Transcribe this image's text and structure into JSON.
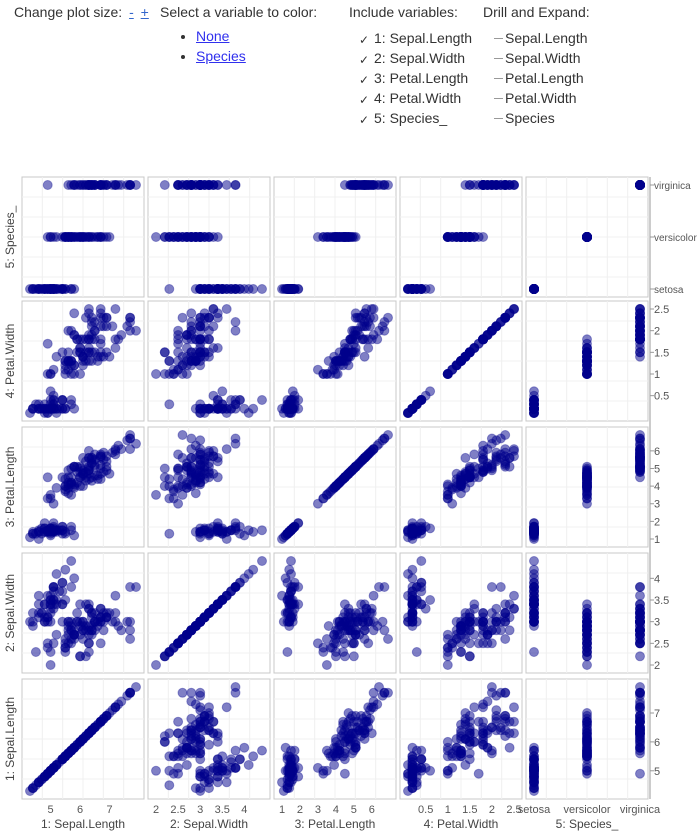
{
  "controls": {
    "plot_size": {
      "label": "Change plot size:",
      "minus": "-",
      "plus": "+"
    },
    "color": {
      "label": "Select a variable to color:",
      "options": [
        "None",
        "Species"
      ]
    },
    "include": {
      "label": "Include variables:",
      "items": [
        "1: Sepal.Length",
        "2: Sepal.Width",
        "3: Petal.Length",
        "4: Petal.Width",
        "5: Species_"
      ],
      "checkmark": "✓"
    },
    "drill": {
      "label": "Drill and Expand:",
      "items": [
        "Sepal.Length",
        "Sepal.Width",
        "Petal.Length",
        "Petal.Width",
        "Species"
      ]
    }
  },
  "chart_data": {
    "type": "scatter",
    "title": "",
    "point_color": "#00008b",
    "variables": [
      {
        "name": "1: Sepal.Length",
        "range": [
          4.3,
          7.9
        ],
        "ticks": [
          5,
          6,
          7
        ]
      },
      {
        "name": "2: Sepal.Width",
        "range": [
          2.0,
          4.4
        ],
        "ticks": [
          2,
          2.5,
          3,
          3.5,
          4
        ]
      },
      {
        "name": "3: Petal.Length",
        "range": [
          1.0,
          6.9
        ],
        "ticks": [
          1,
          2,
          3,
          4,
          5,
          6
        ]
      },
      {
        "name": "4: Petal.Width",
        "range": [
          0.1,
          2.5
        ],
        "ticks": [
          0.5,
          1,
          1.5,
          2,
          2.5
        ]
      },
      {
        "name": "5: Species_",
        "categories": [
          "setosa",
          "versicolor",
          "virginica"
        ]
      }
    ],
    "right_tick_labels": [
      [
        "virginica",
        "versicolor",
        "setosa"
      ],
      [
        "2.5",
        "2",
        "1.5",
        "1",
        "0.5"
      ],
      [
        "6",
        "5",
        "4",
        "3",
        "2",
        "1"
      ],
      [
        "4",
        "3.5",
        "3",
        "2.5",
        "2"
      ],
      [
        "7",
        "6",
        "5"
      ]
    ],
    "points": [
      [
        5.1,
        3.5,
        1.4,
        0.2,
        "setosa"
      ],
      [
        4.9,
        3.0,
        1.4,
        0.2,
        "setosa"
      ],
      [
        4.7,
        3.2,
        1.3,
        0.2,
        "setosa"
      ],
      [
        4.6,
        3.1,
        1.5,
        0.2,
        "setosa"
      ],
      [
        5.0,
        3.6,
        1.4,
        0.2,
        "setosa"
      ],
      [
        5.4,
        3.9,
        1.7,
        0.4,
        "setosa"
      ],
      [
        4.6,
        3.4,
        1.4,
        0.3,
        "setosa"
      ],
      [
        5.0,
        3.4,
        1.5,
        0.2,
        "setosa"
      ],
      [
        4.4,
        2.9,
        1.4,
        0.2,
        "setosa"
      ],
      [
        4.9,
        3.1,
        1.5,
        0.1,
        "setosa"
      ],
      [
        5.4,
        3.7,
        1.5,
        0.2,
        "setosa"
      ],
      [
        4.8,
        3.4,
        1.6,
        0.2,
        "setosa"
      ],
      [
        4.8,
        3.0,
        1.4,
        0.1,
        "setosa"
      ],
      [
        4.3,
        3.0,
        1.1,
        0.1,
        "setosa"
      ],
      [
        5.8,
        4.0,
        1.2,
        0.2,
        "setosa"
      ],
      [
        5.7,
        4.4,
        1.5,
        0.4,
        "setosa"
      ],
      [
        5.4,
        3.9,
        1.3,
        0.4,
        "setosa"
      ],
      [
        5.1,
        3.5,
        1.4,
        0.3,
        "setosa"
      ],
      [
        5.7,
        3.8,
        1.7,
        0.3,
        "setosa"
      ],
      [
        5.1,
        3.8,
        1.5,
        0.3,
        "setosa"
      ],
      [
        5.4,
        3.4,
        1.7,
        0.2,
        "setosa"
      ],
      [
        5.1,
        3.7,
        1.5,
        0.4,
        "setosa"
      ],
      [
        4.6,
        3.6,
        1.0,
        0.2,
        "setosa"
      ],
      [
        5.1,
        3.3,
        1.7,
        0.5,
        "setosa"
      ],
      [
        4.8,
        3.4,
        1.9,
        0.2,
        "setosa"
      ],
      [
        5.0,
        3.0,
        1.6,
        0.2,
        "setosa"
      ],
      [
        5.0,
        3.4,
        1.6,
        0.4,
        "setosa"
      ],
      [
        5.2,
        3.5,
        1.5,
        0.2,
        "setosa"
      ],
      [
        5.2,
        3.4,
        1.4,
        0.2,
        "setosa"
      ],
      [
        4.7,
        3.2,
        1.6,
        0.2,
        "setosa"
      ],
      [
        4.8,
        3.1,
        1.6,
        0.2,
        "setosa"
      ],
      [
        5.4,
        3.4,
        1.5,
        0.4,
        "setosa"
      ],
      [
        5.2,
        4.1,
        1.5,
        0.1,
        "setosa"
      ],
      [
        5.5,
        4.2,
        1.4,
        0.2,
        "setosa"
      ],
      [
        4.9,
        3.1,
        1.5,
        0.2,
        "setosa"
      ],
      [
        5.0,
        3.2,
        1.2,
        0.2,
        "setosa"
      ],
      [
        5.5,
        3.5,
        1.3,
        0.2,
        "setosa"
      ],
      [
        4.9,
        3.6,
        1.4,
        0.1,
        "setosa"
      ],
      [
        4.4,
        3.0,
        1.3,
        0.2,
        "setosa"
      ],
      [
        5.1,
        3.4,
        1.5,
        0.2,
        "setosa"
      ],
      [
        5.0,
        3.5,
        1.3,
        0.3,
        "setosa"
      ],
      [
        4.5,
        2.3,
        1.3,
        0.3,
        "setosa"
      ],
      [
        4.4,
        3.2,
        1.3,
        0.2,
        "setosa"
      ],
      [
        5.0,
        3.5,
        1.6,
        0.6,
        "setosa"
      ],
      [
        5.1,
        3.8,
        1.9,
        0.4,
        "setosa"
      ],
      [
        4.8,
        3.0,
        1.4,
        0.3,
        "setosa"
      ],
      [
        5.1,
        3.8,
        1.6,
        0.2,
        "setosa"
      ],
      [
        4.6,
        3.2,
        1.4,
        0.2,
        "setosa"
      ],
      [
        5.3,
        3.7,
        1.5,
        0.2,
        "setosa"
      ],
      [
        5.0,
        3.3,
        1.4,
        0.2,
        "setosa"
      ],
      [
        7.0,
        3.2,
        4.7,
        1.4,
        "versicolor"
      ],
      [
        6.4,
        3.2,
        4.5,
        1.5,
        "versicolor"
      ],
      [
        6.9,
        3.1,
        4.9,
        1.5,
        "versicolor"
      ],
      [
        5.5,
        2.3,
        4.0,
        1.3,
        "versicolor"
      ],
      [
        6.5,
        2.8,
        4.6,
        1.5,
        "versicolor"
      ],
      [
        5.7,
        2.8,
        4.5,
        1.3,
        "versicolor"
      ],
      [
        6.3,
        3.3,
        4.7,
        1.6,
        "versicolor"
      ],
      [
        4.9,
        2.4,
        3.3,
        1.0,
        "versicolor"
      ],
      [
        6.6,
        2.9,
        4.6,
        1.3,
        "versicolor"
      ],
      [
        5.2,
        2.7,
        3.9,
        1.4,
        "versicolor"
      ],
      [
        5.0,
        2.0,
        3.5,
        1.0,
        "versicolor"
      ],
      [
        5.9,
        3.0,
        4.2,
        1.5,
        "versicolor"
      ],
      [
        6.0,
        2.2,
        4.0,
        1.0,
        "versicolor"
      ],
      [
        6.1,
        2.9,
        4.7,
        1.4,
        "versicolor"
      ],
      [
        5.6,
        2.9,
        3.6,
        1.3,
        "versicolor"
      ],
      [
        6.7,
        3.1,
        4.4,
        1.4,
        "versicolor"
      ],
      [
        5.6,
        3.0,
        4.5,
        1.5,
        "versicolor"
      ],
      [
        5.8,
        2.7,
        4.1,
        1.0,
        "versicolor"
      ],
      [
        6.2,
        2.2,
        4.5,
        1.5,
        "versicolor"
      ],
      [
        5.6,
        2.5,
        3.9,
        1.1,
        "versicolor"
      ],
      [
        5.9,
        3.2,
        4.8,
        1.8,
        "versicolor"
      ],
      [
        6.1,
        2.8,
        4.0,
        1.3,
        "versicolor"
      ],
      [
        6.3,
        2.5,
        4.9,
        1.5,
        "versicolor"
      ],
      [
        6.1,
        2.8,
        4.7,
        1.2,
        "versicolor"
      ],
      [
        6.4,
        2.9,
        4.3,
        1.3,
        "versicolor"
      ],
      [
        6.6,
        3.0,
        4.4,
        1.4,
        "versicolor"
      ],
      [
        6.8,
        2.8,
        4.8,
        1.4,
        "versicolor"
      ],
      [
        6.7,
        3.0,
        5.0,
        1.7,
        "versicolor"
      ],
      [
        6.0,
        2.9,
        4.5,
        1.5,
        "versicolor"
      ],
      [
        5.7,
        2.6,
        3.5,
        1.0,
        "versicolor"
      ],
      [
        5.5,
        2.4,
        3.8,
        1.1,
        "versicolor"
      ],
      [
        5.5,
        2.4,
        3.7,
        1.0,
        "versicolor"
      ],
      [
        5.8,
        2.7,
        3.9,
        1.2,
        "versicolor"
      ],
      [
        6.0,
        2.7,
        5.1,
        1.6,
        "versicolor"
      ],
      [
        5.4,
        3.0,
        4.5,
        1.5,
        "versicolor"
      ],
      [
        6.0,
        3.4,
        4.5,
        1.6,
        "versicolor"
      ],
      [
        6.7,
        3.1,
        4.7,
        1.5,
        "versicolor"
      ],
      [
        6.3,
        2.3,
        4.4,
        1.3,
        "versicolor"
      ],
      [
        5.6,
        3.0,
        4.1,
        1.3,
        "versicolor"
      ],
      [
        5.5,
        2.5,
        4.0,
        1.3,
        "versicolor"
      ],
      [
        5.5,
        2.6,
        4.4,
        1.2,
        "versicolor"
      ],
      [
        6.1,
        3.0,
        4.6,
        1.4,
        "versicolor"
      ],
      [
        5.8,
        2.6,
        4.0,
        1.2,
        "versicolor"
      ],
      [
        5.0,
        2.3,
        3.3,
        1.0,
        "versicolor"
      ],
      [
        5.6,
        2.7,
        4.2,
        1.3,
        "versicolor"
      ],
      [
        5.7,
        3.0,
        4.2,
        1.2,
        "versicolor"
      ],
      [
        5.7,
        2.9,
        4.2,
        1.3,
        "versicolor"
      ],
      [
        6.2,
        2.9,
        4.3,
        1.3,
        "versicolor"
      ],
      [
        5.1,
        2.5,
        3.0,
        1.1,
        "versicolor"
      ],
      [
        5.7,
        2.8,
        4.1,
        1.3,
        "versicolor"
      ],
      [
        6.3,
        3.3,
        6.0,
        2.5,
        "virginica"
      ],
      [
        5.8,
        2.7,
        5.1,
        1.9,
        "virginica"
      ],
      [
        7.1,
        3.0,
        5.9,
        2.1,
        "virginica"
      ],
      [
        6.3,
        2.9,
        5.6,
        1.8,
        "virginica"
      ],
      [
        6.5,
        3.0,
        5.8,
        2.2,
        "virginica"
      ],
      [
        7.6,
        3.0,
        6.6,
        2.1,
        "virginica"
      ],
      [
        4.9,
        2.5,
        4.5,
        1.7,
        "virginica"
      ],
      [
        7.3,
        2.9,
        6.3,
        1.8,
        "virginica"
      ],
      [
        6.7,
        2.5,
        5.8,
        1.8,
        "virginica"
      ],
      [
        7.2,
        3.6,
        6.1,
        2.5,
        "virginica"
      ],
      [
        6.5,
        3.2,
        5.1,
        2.0,
        "virginica"
      ],
      [
        6.4,
        2.7,
        5.3,
        1.9,
        "virginica"
      ],
      [
        6.8,
        3.0,
        5.5,
        2.1,
        "virginica"
      ],
      [
        5.7,
        2.5,
        5.0,
        2.0,
        "virginica"
      ],
      [
        5.8,
        2.8,
        5.1,
        2.4,
        "virginica"
      ],
      [
        6.4,
        3.2,
        5.3,
        2.3,
        "virginica"
      ],
      [
        6.5,
        3.0,
        5.5,
        1.8,
        "virginica"
      ],
      [
        7.7,
        3.8,
        6.7,
        2.2,
        "virginica"
      ],
      [
        7.7,
        2.6,
        6.9,
        2.3,
        "virginica"
      ],
      [
        6.0,
        2.2,
        5.0,
        1.5,
        "virginica"
      ],
      [
        6.9,
        3.2,
        5.7,
        2.3,
        "virginica"
      ],
      [
        5.6,
        2.8,
        4.9,
        2.0,
        "virginica"
      ],
      [
        7.7,
        2.8,
        6.7,
        2.0,
        "virginica"
      ],
      [
        6.3,
        2.7,
        4.9,
        1.8,
        "virginica"
      ],
      [
        6.7,
        3.3,
        5.7,
        2.1,
        "virginica"
      ],
      [
        7.2,
        3.2,
        6.0,
        1.8,
        "virginica"
      ],
      [
        6.2,
        2.8,
        4.8,
        1.8,
        "virginica"
      ],
      [
        6.1,
        3.0,
        4.9,
        1.8,
        "virginica"
      ],
      [
        6.4,
        2.8,
        5.6,
        2.1,
        "virginica"
      ],
      [
        7.2,
        3.0,
        5.8,
        1.6,
        "virginica"
      ],
      [
        7.4,
        2.8,
        6.1,
        1.9,
        "virginica"
      ],
      [
        7.9,
        3.8,
        6.4,
        2.0,
        "virginica"
      ],
      [
        6.4,
        2.8,
        5.6,
        2.2,
        "virginica"
      ],
      [
        6.3,
        2.8,
        5.1,
        1.5,
        "virginica"
      ],
      [
        6.1,
        2.6,
        5.6,
        1.4,
        "virginica"
      ],
      [
        7.7,
        3.0,
        6.1,
        2.3,
        "virginica"
      ],
      [
        6.3,
        3.4,
        5.6,
        2.4,
        "virginica"
      ],
      [
        6.4,
        3.1,
        5.5,
        1.8,
        "virginica"
      ],
      [
        6.0,
        3.0,
        4.8,
        1.8,
        "virginica"
      ],
      [
        6.9,
        3.1,
        5.4,
        2.1,
        "virginica"
      ],
      [
        6.7,
        3.1,
        5.6,
        2.4,
        "virginica"
      ],
      [
        6.9,
        3.1,
        5.1,
        2.3,
        "virginica"
      ],
      [
        5.8,
        2.7,
        5.1,
        1.9,
        "virginica"
      ],
      [
        6.8,
        3.2,
        5.9,
        2.3,
        "virginica"
      ],
      [
        6.7,
        3.3,
        5.7,
        2.5,
        "virginica"
      ],
      [
        6.7,
        3.0,
        5.2,
        2.3,
        "virginica"
      ],
      [
        6.3,
        2.5,
        5.0,
        1.9,
        "virginica"
      ],
      [
        6.5,
        3.0,
        5.2,
        2.0,
        "virginica"
      ],
      [
        6.2,
        3.4,
        5.4,
        2.3,
        "virginica"
      ],
      [
        5.9,
        3.0,
        5.1,
        1.8,
        "virginica"
      ]
    ]
  }
}
